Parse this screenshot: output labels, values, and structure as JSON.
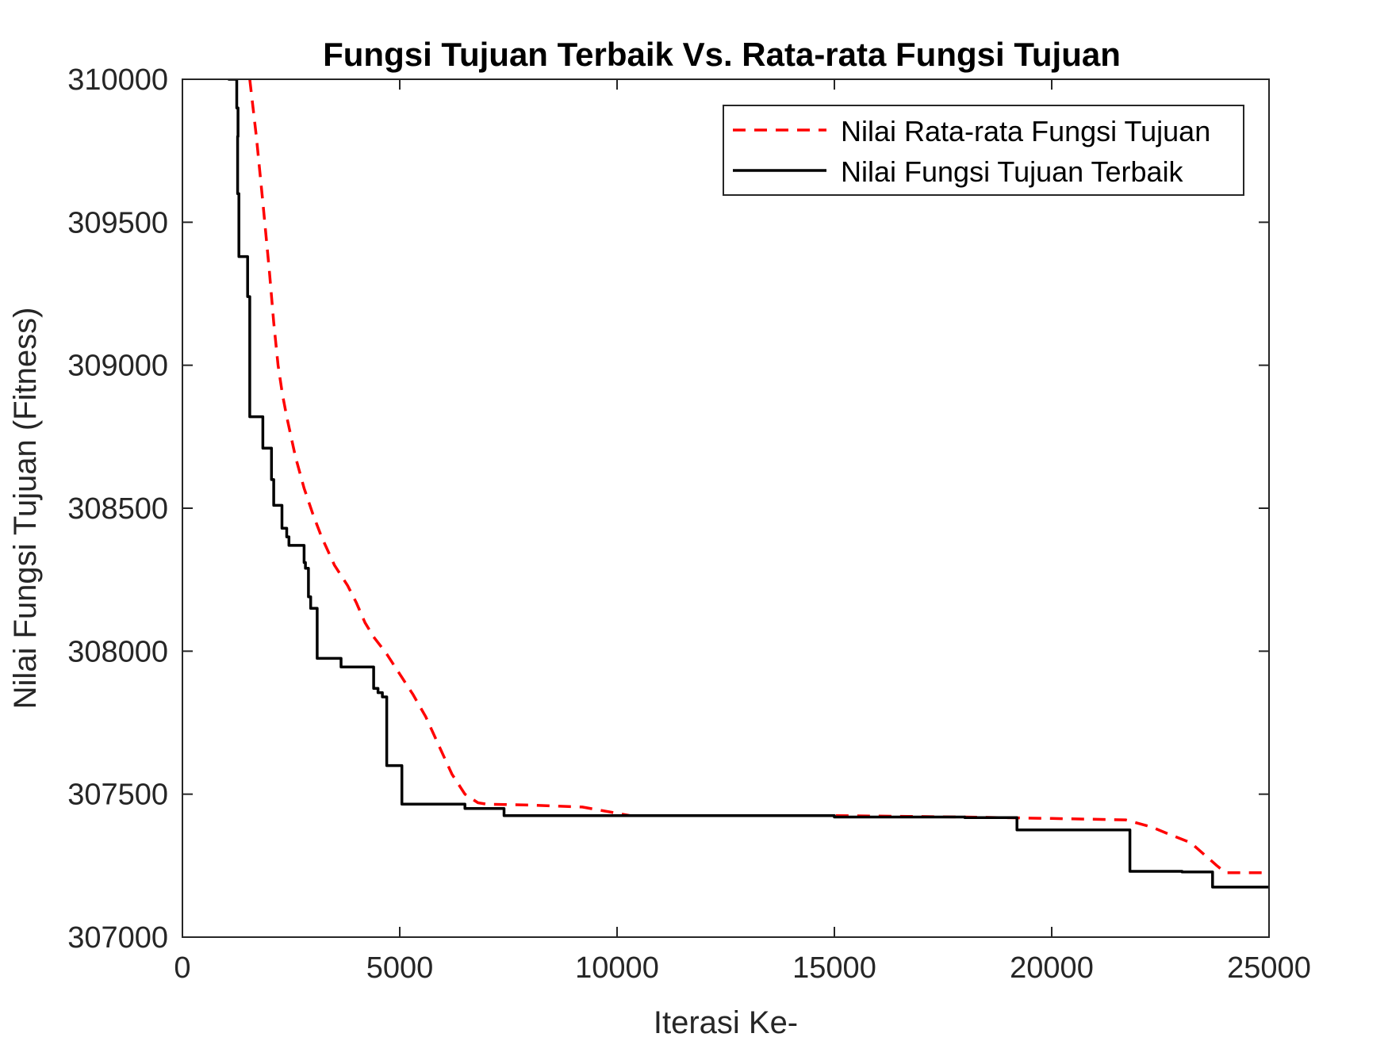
{
  "chart_data": {
    "type": "line",
    "title": "Fungsi Tujuan Terbaik Vs. Rata-rata Fungsi Tujuan",
    "xlabel": "Iterasi Ke-",
    "ylabel": "Nilai Fungsi Tujuan (Fitness)",
    "xlim": [
      0,
      25000
    ],
    "ylim": [
      307000,
      310000
    ],
    "xticks": [
      0,
      5000,
      10000,
      15000,
      20000,
      25000
    ],
    "xtick_labels": [
      "0",
      "5000",
      "10000",
      "15000",
      "20000",
      "25000"
    ],
    "yticks": [
      307000,
      307500,
      308000,
      308500,
      309000,
      309500,
      310000
    ],
    "ytick_labels": [
      "307000",
      "307500",
      "308000",
      "308500",
      "309000",
      "309500",
      "310000"
    ],
    "grid": false,
    "legend_position": "top-right",
    "series": [
      {
        "name": "Nilai Rata-rata Fungsi Tujuan",
        "color": "#ff0000",
        "style": "dashed",
        "x": [
          1550,
          1700,
          1850,
          2000,
          2100,
          2200,
          2300,
          2400,
          2600,
          2800,
          3000,
          3200,
          3500,
          3800,
          4000,
          4200,
          4400,
          4700,
          5000,
          5300,
          5600,
          5900,
          6200,
          6500,
          6800,
          7000,
          8000,
          9200,
          10300,
          12000,
          15000,
          18000,
          20000,
          21700,
          22300,
          22700,
          23200,
          23500,
          23800,
          24000,
          24500,
          25000
        ],
        "y": [
          310000,
          309800,
          309570,
          309330,
          309150,
          309000,
          308900,
          308820,
          308680,
          308570,
          308480,
          308400,
          308300,
          308230,
          308170,
          308100,
          308050,
          307990,
          307920,
          307850,
          307770,
          307670,
          307570,
          307500,
          307470,
          307465,
          307462,
          307455,
          307425,
          307425,
          307425,
          307420,
          307415,
          307410,
          307385,
          307360,
          307330,
          307290,
          307250,
          307225,
          307225,
          307225
        ]
      },
      {
        "name": "Nilai Fungsi Tujuan Terbaik",
        "color": "#000000",
        "style": "solid",
        "x": [
          1050,
          1050,
          1250,
          1250,
          1280,
          1280,
          1270,
          1270,
          1300,
          1300,
          1320,
          1320,
          1500,
          1500,
          1550,
          1550,
          1850,
          1850,
          2050,
          2050,
          2100,
          2100,
          2100,
          2100,
          2250,
          2250,
          2290,
          2290,
          2400,
          2400,
          2450,
          2450,
          2800,
          2800,
          2830,
          2830,
          2900,
          2900,
          2930,
          2930,
          2950,
          2950,
          3100,
          3100,
          3200,
          3200,
          3500,
          3500,
          3600,
          3600,
          3650,
          3650,
          3900,
          3900,
          4200,
          4200,
          4400,
          4400,
          4500,
          4500,
          4600,
          4600,
          4650,
          4650,
          4700,
          4700,
          4950,
          4950,
          5000,
          5000,
          5050,
          5050,
          5500,
          5500,
          5900,
          5900,
          6100,
          6100,
          6500,
          6500,
          6900,
          6900,
          7400,
          7400,
          7700,
          7700,
          8800,
          8800,
          9500,
          9500,
          10000,
          10000,
          12000,
          12000,
          15000,
          15000,
          15500,
          15500,
          18000,
          18000,
          19200,
          19200,
          20000,
          20000,
          20000,
          20000,
          21800,
          21800,
          22500,
          22500,
          23000,
          23000,
          23700,
          23700,
          24000,
          24000,
          25000
        ],
        "y": [
          310000,
          310000,
          310000,
          309900,
          309900,
          309800,
          309800,
          309600,
          309600,
          309380,
          309380,
          309380,
          309380,
          309240,
          309240,
          308820,
          308820,
          308710,
          308710,
          308600,
          308600,
          308600,
          308600,
          308510,
          308510,
          308510,
          308510,
          308430,
          308430,
          308400,
          308400,
          308370,
          308370,
          308310,
          308310,
          308290,
          308290,
          308190,
          308190,
          308190,
          308190,
          308150,
          308150,
          307975,
          307975,
          307975,
          307975,
          307975,
          307975,
          307975,
          307975,
          307945,
          307945,
          307945,
          307945,
          307945,
          307945,
          307870,
          307870,
          307855,
          307855,
          307840,
          307840,
          307840,
          307840,
          307600,
          307600,
          307600,
          307600,
          307600,
          307600,
          307465,
          307465,
          307465,
          307465,
          307465,
          307465,
          307465,
          307465,
          307450,
          307450,
          307450,
          307450,
          307425,
          307425,
          307425,
          307425,
          307425,
          307425,
          307425,
          307425,
          307425,
          307425,
          307425,
          307425,
          307420,
          307420,
          307420,
          307420,
          307418,
          307418,
          307375,
          307375,
          307375,
          307375,
          307375,
          307375,
          307230,
          307230,
          307230,
          307230,
          307228,
          307228,
          307175,
          307175,
          307175,
          307175
        ]
      }
    ]
  }
}
